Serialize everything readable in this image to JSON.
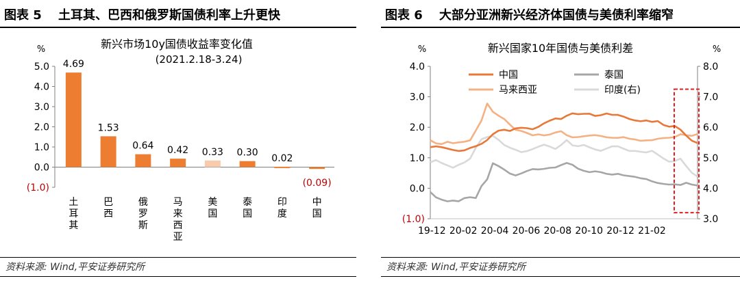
{
  "left_panel": {
    "figure_title": "图表 5　 土耳其、巴西和俄罗斯国债利率上升更快",
    "source": "资料来源: Wind,平安证券研究所"
  },
  "right_panel": {
    "figure_title": "图表 6　 大部分亚洲新兴经济体国债与美债利率缩窄",
    "source": "资料来源: Wind,平安证券研究所"
  },
  "colors": {
    "bar": "#ED7D31",
    "bar_light": "#F8CBAD",
    "negative_label": "#C00000",
    "china": "#E87837",
    "thailand": "#A6A6A6",
    "malaysia": "#F4B183",
    "india": "#D9D9D9",
    "highlight_box": "#E02020"
  },
  "chart_data": [
    {
      "type": "bar",
      "title": "新兴市场10y国债收益率变化值",
      "subtitle": "(2021.2.18-3.24)",
      "ylabel": "%",
      "ylim": [
        -1.0,
        5.0
      ],
      "yticks": [
        "(1.0)",
        "0.0",
        "1.0",
        "2.0",
        "3.0",
        "4.0",
        "5.0"
      ],
      "categories": [
        "土耳其",
        "巴西",
        "俄罗斯",
        "马来西亚",
        "美国",
        "泰国",
        "印度",
        "中国"
      ],
      "values": [
        4.69,
        1.53,
        0.64,
        0.42,
        0.33,
        0.3,
        0.02,
        -0.09
      ],
      "value_labels": [
        "4.69",
        "1.53",
        "0.64",
        "0.42",
        "0.33",
        "0.30",
        "0.02",
        "(0.09)"
      ],
      "highlight_index": 4,
      "grid": false
    },
    {
      "type": "line",
      "title": "新兴国家10年国债与美债利差",
      "ylabel_left": "%",
      "ylabel_right": "%",
      "ylim_left": [
        -1.0,
        4.0
      ],
      "ylim_right": [
        3.0,
        8.0
      ],
      "yticks_left": [
        "(1.0)",
        "0.0",
        "1.0",
        "2.0",
        "3.0",
        "4.0"
      ],
      "yticks_right": [
        "3.0",
        "4.0",
        "5.0",
        "6.0",
        "7.0",
        "8.0"
      ],
      "x_ticks": [
        "19-12",
        "20-02",
        "20-04",
        "20-06",
        "20-08",
        "20-10",
        "20-12",
        "21-02"
      ],
      "legend": [
        "中国",
        "泰国",
        "马来西亚",
        "印度(右)"
      ],
      "legend_position": "top-left",
      "series": [
        {
          "name": "中国",
          "axis": "left",
          "values": [
            1.35,
            1.35,
            1.32,
            1.3,
            1.28,
            1.25,
            1.25,
            1.3,
            1.35,
            1.45,
            1.6,
            1.8,
            1.9,
            1.9,
            1.85,
            1.95,
            2.0,
            2.0,
            1.95,
            2.0,
            2.1,
            2.2,
            2.3,
            2.3,
            2.4,
            2.45,
            2.4,
            2.42,
            2.45,
            2.4,
            2.42,
            2.45,
            2.38,
            2.38,
            2.35,
            2.3,
            2.25,
            2.2,
            2.2,
            2.15,
            2.2,
            2.1,
            2.05,
            2.05,
            1.9,
            1.7,
            1.55,
            1.5
          ]
        },
        {
          "name": "泰国",
          "axis": "left",
          "values": [
            -0.15,
            -0.3,
            -0.35,
            -0.4,
            -0.4,
            -0.45,
            -0.35,
            -0.3,
            -0.3,
            0.1,
            0.3,
            0.8,
            0.7,
            0.6,
            0.5,
            0.45,
            0.5,
            0.55,
            0.6,
            0.6,
            0.65,
            0.7,
            0.7,
            0.75,
            0.8,
            0.75,
            0.65,
            0.6,
            0.55,
            0.55,
            0.5,
            0.45,
            0.45,
            0.5,
            0.45,
            0.4,
            0.35,
            0.3,
            0.3,
            0.25,
            0.2,
            0.15,
            0.1,
            0.1,
            0.1,
            0.2,
            0.15,
            0.1
          ]
        },
        {
          "name": "马来西亚",
          "axis": "left",
          "values": [
            1.6,
            1.5,
            1.45,
            1.5,
            1.45,
            1.5,
            1.55,
            1.6,
            1.9,
            2.2,
            2.75,
            2.5,
            2.4,
            2.3,
            2.1,
            1.9,
            1.85,
            1.8,
            1.75,
            1.8,
            1.75,
            1.75,
            1.8,
            1.85,
            1.75,
            1.7,
            1.7,
            1.7,
            1.7,
            1.72,
            1.72,
            1.7,
            1.68,
            1.65,
            1.65,
            1.6,
            1.6,
            1.58,
            1.6,
            1.58,
            1.6,
            1.62,
            1.65,
            1.7,
            1.8,
            1.75,
            1.7,
            1.75
          ]
        },
        {
          "name": "印度(右)",
          "axis": "right",
          "values": [
            4.85,
            4.9,
            4.8,
            4.75,
            4.7,
            4.8,
            4.85,
            4.95,
            5.3,
            5.6,
            5.7,
            5.75,
            5.6,
            5.4,
            5.3,
            5.25,
            5.2,
            5.25,
            5.3,
            5.35,
            5.4,
            5.35,
            5.3,
            5.45,
            5.6,
            5.4,
            5.35,
            5.4,
            5.35,
            5.3,
            5.25,
            5.3,
            5.35,
            5.35,
            5.3,
            5.25,
            5.25,
            5.2,
            5.15,
            5.2,
            5.1,
            5.0,
            4.9,
            4.9,
            4.95,
            4.7,
            4.5,
            4.4
          ]
        }
      ],
      "highlight_box": {
        "covers": "21-03",
        "style": "dashed"
      }
    }
  ]
}
